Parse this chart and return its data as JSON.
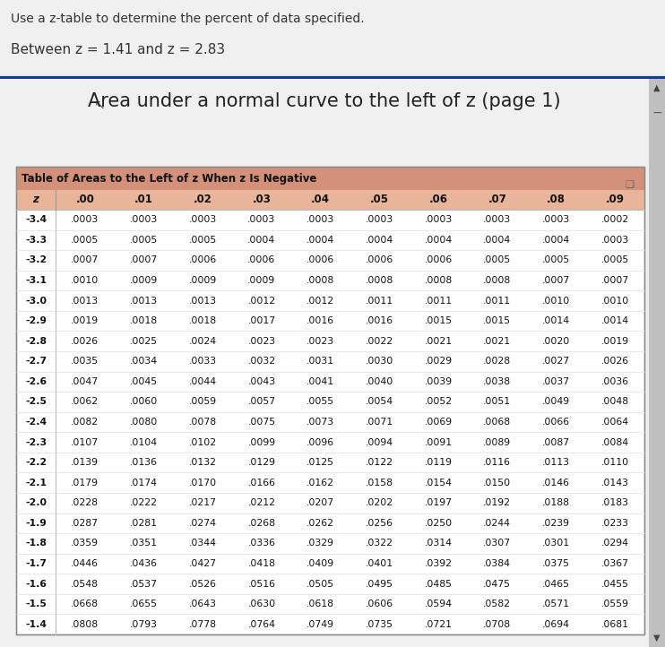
{
  "top_text_line1": "Use a z-table to determine the percent of data specified.",
  "top_text_line2": "Between z = 1.41 and z = 2.83",
  "main_title": "Area under a normal curve to the left of z (page 1)",
  "table_title": "Table of Areas to the Left of z When z Is Negative",
  "col_headers": [
    "z",
    ".00",
    ".01",
    ".02",
    ".03",
    ".04",
    ".05",
    ".06",
    ".07",
    ".08",
    ".09"
  ],
  "rows": [
    [
      "-3.4",
      ".0003",
      ".0003",
      ".0003",
      ".0003",
      ".0003",
      ".0003",
      ".0003",
      ".0003",
      ".0003",
      ".0002"
    ],
    [
      "-3.3",
      ".0005",
      ".0005",
      ".0005",
      ".0004",
      ".0004",
      ".0004",
      ".0004",
      ".0004",
      ".0004",
      ".0003"
    ],
    [
      "-3.2",
      ".0007",
      ".0007",
      ".0006",
      ".0006",
      ".0006",
      ".0006",
      ".0006",
      ".0005",
      ".0005",
      ".0005"
    ],
    [
      "-3.1",
      ".0010",
      ".0009",
      ".0009",
      ".0009",
      ".0008",
      ".0008",
      ".0008",
      ".0008",
      ".0007",
      ".0007"
    ],
    [
      "-3.0",
      ".0013",
      ".0013",
      ".0013",
      ".0012",
      ".0012",
      ".0011",
      ".0011",
      ".0011",
      ".0010",
      ".0010"
    ],
    [
      "-2.9",
      ".0019",
      ".0018",
      ".0018",
      ".0017",
      ".0016",
      ".0016",
      ".0015",
      ".0015",
      ".0014",
      ".0014"
    ],
    [
      "-2.8",
      ".0026",
      ".0025",
      ".0024",
      ".0023",
      ".0023",
      ".0022",
      ".0021",
      ".0021",
      ".0020",
      ".0019"
    ],
    [
      "-2.7",
      ".0035",
      ".0034",
      ".0033",
      ".0032",
      ".0031",
      ".0030",
      ".0029",
      ".0028",
      ".0027",
      ".0026"
    ],
    [
      "-2.6",
      ".0047",
      ".0045",
      ".0044",
      ".0043",
      ".0041",
      ".0040",
      ".0039",
      ".0038",
      ".0037",
      ".0036"
    ],
    [
      "-2.5",
      ".0062",
      ".0060",
      ".0059",
      ".0057",
      ".0055",
      ".0054",
      ".0052",
      ".0051",
      ".0049",
      ".0048"
    ],
    [
      "-2.4",
      ".0082",
      ".0080",
      ".0078",
      ".0075",
      ".0073",
      ".0071",
      ".0069",
      ".0068",
      ".0066",
      ".0064"
    ],
    [
      "-2.3",
      ".0107",
      ".0104",
      ".0102",
      ".0099",
      ".0096",
      ".0094",
      ".0091",
      ".0089",
      ".0087",
      ".0084"
    ],
    [
      "-2.2",
      ".0139",
      ".0136",
      ".0132",
      ".0129",
      ".0125",
      ".0122",
      ".0119",
      ".0116",
      ".0113",
      ".0110"
    ],
    [
      "-2.1",
      ".0179",
      ".0174",
      ".0170",
      ".0166",
      ".0162",
      ".0158",
      ".0154",
      ".0150",
      ".0146",
      ".0143"
    ],
    [
      "-2.0",
      ".0228",
      ".0222",
      ".0217",
      ".0212",
      ".0207",
      ".0202",
      ".0197",
      ".0192",
      ".0188",
      ".0183"
    ],
    [
      "-1.9",
      ".0287",
      ".0281",
      ".0274",
      ".0268",
      ".0262",
      ".0256",
      ".0250",
      ".0244",
      ".0239",
      ".0233"
    ],
    [
      "-1.8",
      ".0359",
      ".0351",
      ".0344",
      ".0336",
      ".0329",
      ".0322",
      ".0314",
      ".0307",
      ".0301",
      ".0294"
    ],
    [
      "-1.7",
      ".0446",
      ".0436",
      ".0427",
      ".0418",
      ".0409",
      ".0401",
      ".0392",
      ".0384",
      ".0375",
      ".0367"
    ],
    [
      "-1.6",
      ".0548",
      ".0537",
      ".0526",
      ".0516",
      ".0505",
      ".0495",
      ".0485",
      ".0475",
      ".0465",
      ".0455"
    ],
    [
      "-1.5",
      ".0668",
      ".0655",
      ".0643",
      ".0630",
      ".0618",
      ".0606",
      ".0594",
      ".0582",
      ".0571",
      ".0559"
    ],
    [
      "-1.4",
      ".0808",
      ".0793",
      ".0778",
      ".0764",
      ".0749",
      ".0735",
      ".0721",
      ".0708",
      ".0694",
      ".0681"
    ]
  ],
  "bg_color_top": "#f0f0f0",
  "bg_color_main": "#d8d8d8",
  "header_bg": "#d4917a",
  "col_header_bg": "#e8b49a",
  "table_bg": "#ffffff",
  "border_color": "#1a3a8a",
  "scrollbar_color": "#c0c0c0",
  "top_text_color": "#333333",
  "title_color": "#222222",
  "table_text_color": "#111111"
}
